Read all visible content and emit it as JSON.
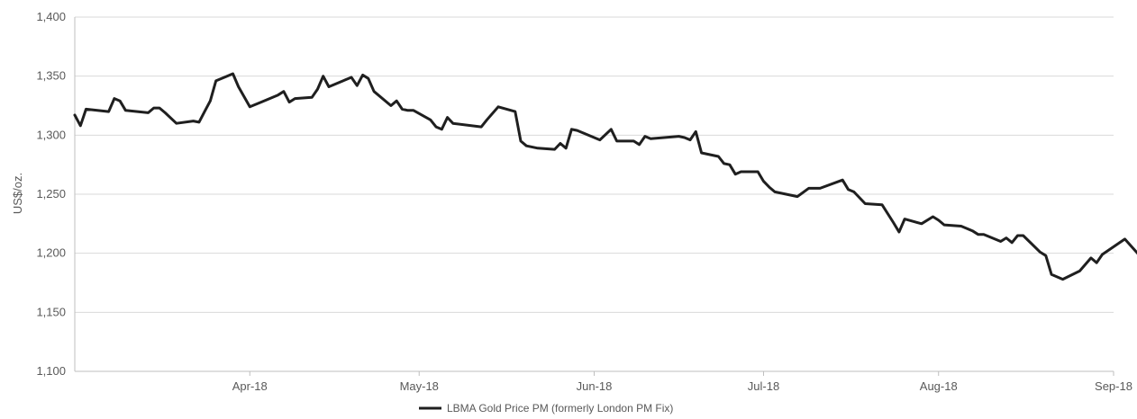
{
  "chart_data": {
    "type": "line",
    "title": "",
    "xlabel": "",
    "ylabel": "US$/oz.",
    "ylim": [
      1100,
      1400
    ],
    "y_ticks": [
      1100,
      1150,
      1200,
      1250,
      1300,
      1350,
      1400
    ],
    "y_tick_labels": [
      "1,100",
      "1,150",
      "1,200",
      "1,250",
      "1,300",
      "1,350",
      "1,400"
    ],
    "x_range": [
      "2018-03-01",
      "2018-09-01"
    ],
    "x_ticks": [
      {
        "date": "2018-04-01",
        "label": "Apr-18"
      },
      {
        "date": "2018-05-01",
        "label": "May-18"
      },
      {
        "date": "2018-06-01",
        "label": "Jun-18"
      },
      {
        "date": "2018-07-01",
        "label": "Jul-18"
      },
      {
        "date": "2018-08-01",
        "label": "Aug-18"
      },
      {
        "date": "2018-09-01",
        "label": "Sep-18"
      }
    ],
    "grid": "horizontal",
    "legend": "bottom",
    "series": [
      {
        "name": "LBMA Gold Price PM (formerly London PM Fix)",
        "color": "#1f1f1f",
        "points": [
          [
            "2018-03-01",
            1317
          ],
          [
            "2018-03-02",
            1308
          ],
          [
            "2018-03-03",
            1322
          ],
          [
            "2018-03-05",
            1321
          ],
          [
            "2018-03-07",
            1320
          ],
          [
            "2018-03-08",
            1331
          ],
          [
            "2018-03-09",
            1329
          ],
          [
            "2018-03-10",
            1321
          ],
          [
            "2018-03-14",
            1319
          ],
          [
            "2018-03-15",
            1323
          ],
          [
            "2018-03-16",
            1323
          ],
          [
            "2018-03-17",
            1319
          ],
          [
            "2018-03-19",
            1310
          ],
          [
            "2018-03-22",
            1312
          ],
          [
            "2018-03-23",
            1311
          ],
          [
            "2018-03-24",
            1320
          ],
          [
            "2018-03-25",
            1329
          ],
          [
            "2018-03-26",
            1346
          ],
          [
            "2018-03-29",
            1352
          ],
          [
            "2018-03-30",
            1341
          ],
          [
            "2018-04-01",
            1324
          ],
          [
            "2018-04-03",
            1328
          ],
          [
            "2018-04-06",
            1334
          ],
          [
            "2018-04-07",
            1337
          ],
          [
            "2018-04-08",
            1328
          ],
          [
            "2018-04-09",
            1331
          ],
          [
            "2018-04-12",
            1332
          ],
          [
            "2018-04-13",
            1339
          ],
          [
            "2018-04-14",
            1350
          ],
          [
            "2018-04-15",
            1341
          ],
          [
            "2018-04-19",
            1349
          ],
          [
            "2018-04-20",
            1342
          ],
          [
            "2018-04-21",
            1351
          ],
          [
            "2018-04-22",
            1348
          ],
          [
            "2018-04-23",
            1337
          ],
          [
            "2018-04-26",
            1325
          ],
          [
            "2018-04-27",
            1329
          ],
          [
            "2018-04-28",
            1322
          ],
          [
            "2018-04-29",
            1321
          ],
          [
            "2018-04-30",
            1321
          ],
          [
            "2018-05-03",
            1313
          ],
          [
            "2018-05-04",
            1307
          ],
          [
            "2018-05-05",
            1305
          ],
          [
            "2018-05-06",
            1315
          ],
          [
            "2018-05-07",
            1310
          ],
          [
            "2018-05-12",
            1307
          ],
          [
            "2018-05-13",
            1313
          ],
          [
            "2018-05-15",
            1324
          ],
          [
            "2018-05-18",
            1320
          ],
          [
            "2018-05-19",
            1295
          ],
          [
            "2018-05-20",
            1291
          ],
          [
            "2018-05-22",
            1289
          ],
          [
            "2018-05-25",
            1288
          ],
          [
            "2018-05-26",
            1293
          ],
          [
            "2018-05-27",
            1289
          ],
          [
            "2018-05-28",
            1305
          ],
          [
            "2018-05-29",
            1304
          ],
          [
            "2018-06-02",
            1296
          ],
          [
            "2018-06-04",
            1305
          ],
          [
            "2018-06-05",
            1295
          ],
          [
            "2018-06-08",
            1295
          ],
          [
            "2018-06-09",
            1292
          ],
          [
            "2018-06-10",
            1299
          ],
          [
            "2018-06-11",
            1297
          ],
          [
            "2018-06-16",
            1299
          ],
          [
            "2018-06-17",
            1298
          ],
          [
            "2018-06-18",
            1296
          ],
          [
            "2018-06-19",
            1303
          ],
          [
            "2018-06-20",
            1285
          ],
          [
            "2018-06-23",
            1282
          ],
          [
            "2018-06-24",
            1276
          ],
          [
            "2018-06-25",
            1275
          ],
          [
            "2018-06-26",
            1267
          ],
          [
            "2018-06-27",
            1269
          ],
          [
            "2018-06-30",
            1269
          ],
          [
            "2018-07-01",
            1261
          ],
          [
            "2018-07-02",
            1256
          ],
          [
            "2018-07-03",
            1252
          ],
          [
            "2018-07-07",
            1248
          ],
          [
            "2018-07-09",
            1255
          ],
          [
            "2018-07-11",
            1255
          ],
          [
            "2018-07-15",
            1262
          ],
          [
            "2018-07-16",
            1254
          ],
          [
            "2018-07-17",
            1252
          ],
          [
            "2018-07-19",
            1242
          ],
          [
            "2018-07-22",
            1241
          ],
          [
            "2018-07-24",
            1226
          ],
          [
            "2018-07-25",
            1218
          ],
          [
            "2018-07-26",
            1229
          ],
          [
            "2018-07-29",
            1225
          ],
          [
            "2018-07-31",
            1231
          ],
          [
            "2018-08-01",
            1228
          ],
          [
            "2018-08-02",
            1224
          ],
          [
            "2018-08-05",
            1223
          ],
          [
            "2018-08-06",
            1221
          ],
          [
            "2018-08-07",
            1219
          ],
          [
            "2018-08-08",
            1216
          ],
          [
            "2018-08-09",
            1216
          ],
          [
            "2018-08-12",
            1210
          ],
          [
            "2018-08-13",
            1213
          ],
          [
            "2018-08-14",
            1209
          ],
          [
            "2018-08-15",
            1215
          ],
          [
            "2018-08-16",
            1215
          ],
          [
            "2018-08-19",
            1201
          ],
          [
            "2018-08-20",
            1198
          ],
          [
            "2018-08-21",
            1182
          ],
          [
            "2018-08-23",
            1178
          ],
          [
            "2018-08-26",
            1185
          ],
          [
            "2018-08-28",
            1196
          ],
          [
            "2018-08-29",
            1192
          ],
          [
            "2018-08-30",
            1199
          ],
          [
            "2018-09-03",
            1212
          ],
          [
            "2018-09-06",
            1196
          ],
          [
            "2018-09-07",
            1203
          ],
          [
            "2018-09-08",
            1202
          ]
        ]
      }
    ]
  }
}
